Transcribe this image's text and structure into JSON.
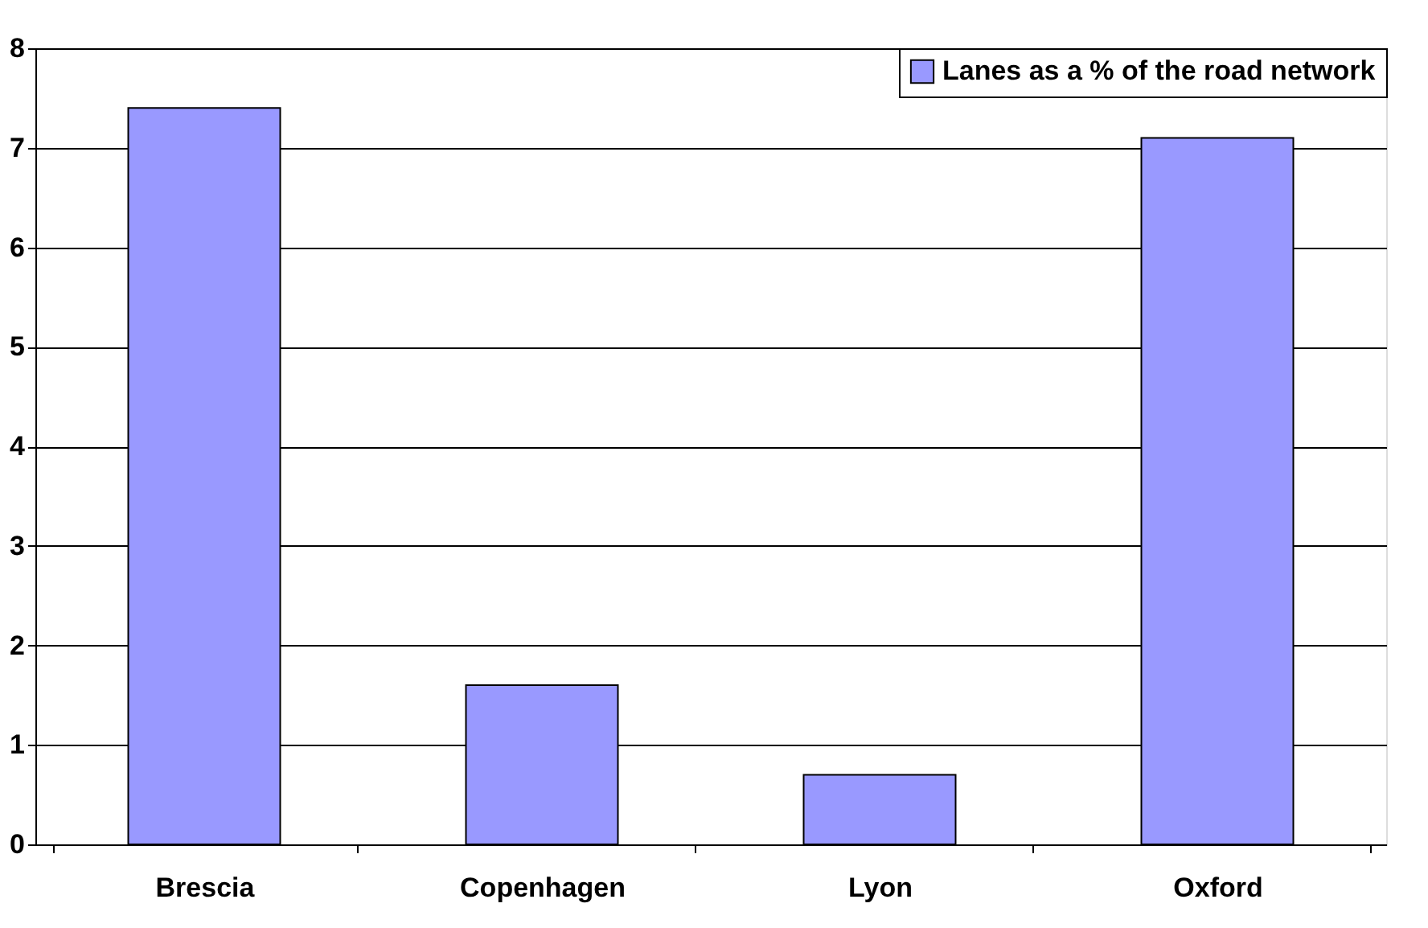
{
  "chart_data": {
    "type": "bar",
    "categories": [
      "Brescia",
      "Copenhagen",
      "Lyon",
      "Oxford"
    ],
    "series": [
      {
        "name": "Lanes as a % of the road network",
        "color": "#9999ff",
        "values": [
          7.4,
          1.6,
          0.7,
          7.1
        ]
      }
    ],
    "ylim": [
      0,
      8
    ],
    "yticks": [
      0,
      1,
      2,
      3,
      4,
      5,
      6,
      7,
      8
    ],
    "grid": "y",
    "legend": "top right"
  }
}
